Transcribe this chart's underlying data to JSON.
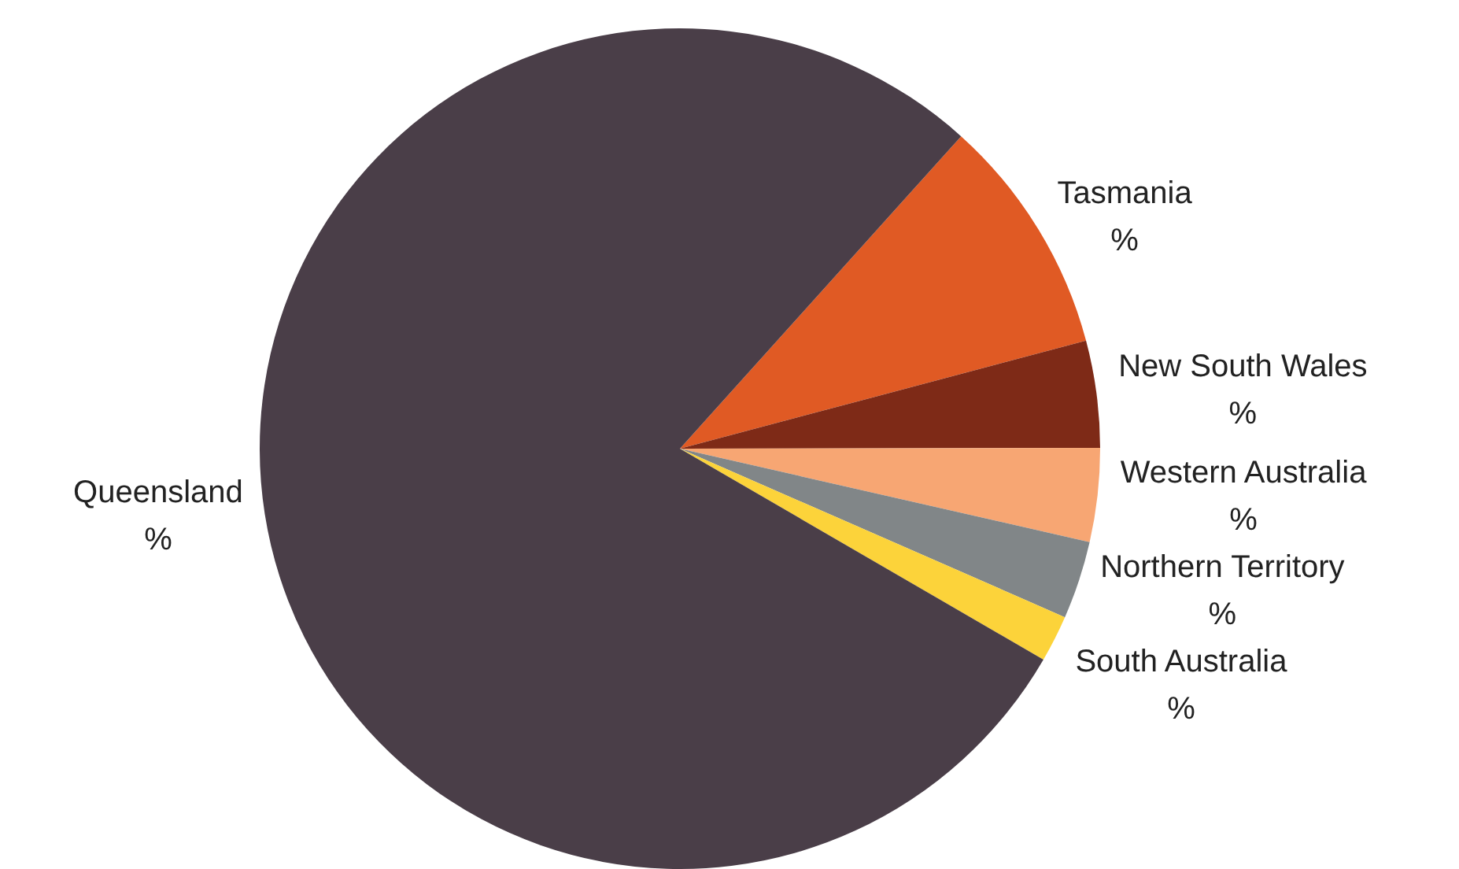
{
  "chart_data": {
    "type": "pie",
    "categories": [
      "Tasmania",
      "New South Wales",
      "Western Australia",
      "Northern Territory",
      "South Australia",
      "Queensland"
    ],
    "values": [
      9.2,
      4.1,
      3.6,
      3.0,
      1.8,
      78.3
    ],
    "value_labels": [
      "%",
      "%",
      "%",
      "%",
      "%",
      "%"
    ],
    "colors": [
      "#e05a24",
      "#7e2a17",
      "#f7a673",
      "#818688",
      "#fcd33a",
      "#4a3e48"
    ],
    "legend": false
  }
}
